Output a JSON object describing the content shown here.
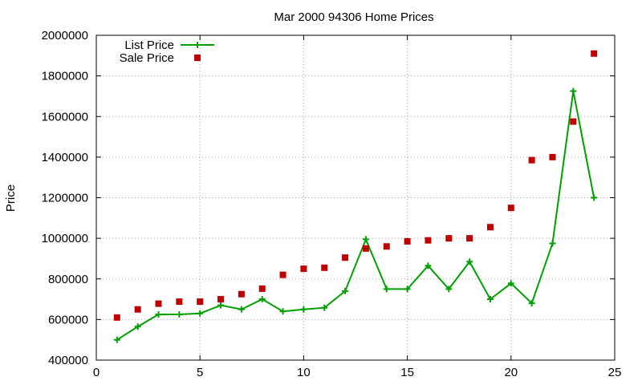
{
  "chart_data": {
    "type": "line",
    "title": "Mar 2000 94306 Home Prices",
    "xlabel": "",
    "ylabel": "Price",
    "xlim": [
      0,
      25
    ],
    "ylim": [
      400000,
      2000000
    ],
    "x_ticks": [
      0,
      5,
      10,
      15,
      20,
      25
    ],
    "y_ticks": [
      400000,
      600000,
      800000,
      1000000,
      1200000,
      1400000,
      1600000,
      1800000,
      2000000
    ],
    "grid": true,
    "legend_position": "top-left",
    "series": [
      {
        "name": "List Price",
        "style": "linespoints",
        "marker": "plus",
        "color": "#00a000",
        "x": [
          1,
          2,
          3,
          4,
          5,
          6,
          7,
          8,
          9,
          10,
          11,
          12,
          13,
          14,
          15,
          16,
          17,
          18,
          19,
          20,
          21,
          22,
          23,
          24
        ],
        "y": [
          500000,
          565000,
          625000,
          625000,
          630000,
          670000,
          650000,
          700000,
          640000,
          650000,
          658000,
          740000,
          995000,
          750000,
          750000,
          865000,
          750000,
          885000,
          700000,
          778000,
          680000,
          975000,
          1725000,
          1200000
        ]
      },
      {
        "name": "Sale Price",
        "style": "points",
        "marker": "square",
        "color": "#c00000",
        "x": [
          1,
          2,
          3,
          4,
          5,
          6,
          7,
          8,
          9,
          10,
          11,
          12,
          13,
          14,
          15,
          16,
          17,
          18,
          19,
          20,
          21,
          22,
          23,
          24
        ],
        "y": [
          610000,
          650000,
          678000,
          688000,
          688000,
          700000,
          725000,
          752000,
          820000,
          850000,
          855000,
          905000,
          950000,
          960000,
          985000,
          990000,
          1000000,
          1000000,
          1055000,
          1150000,
          1385000,
          1400000,
          1575000,
          1910000
        ]
      }
    ]
  }
}
